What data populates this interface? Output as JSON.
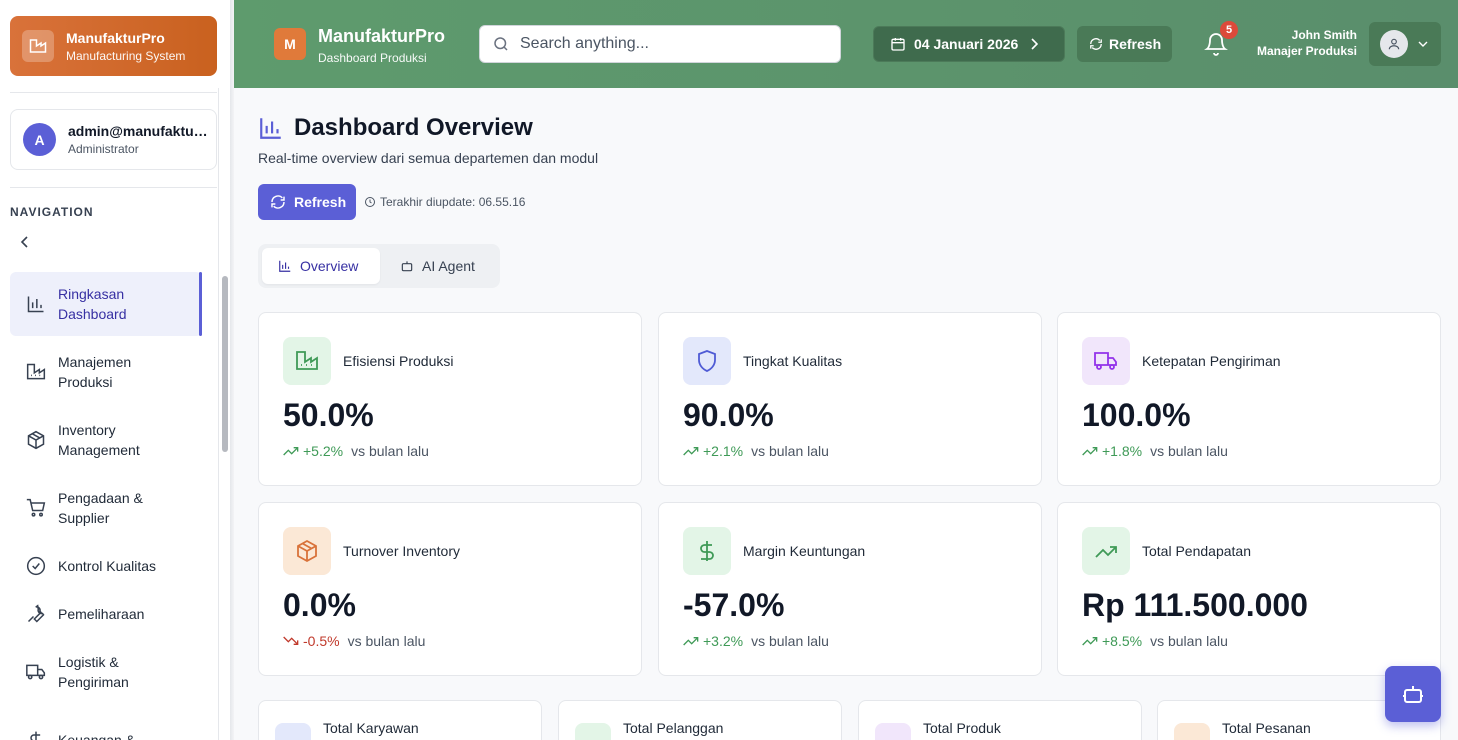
{
  "sidebar": {
    "brand_title": "ManufakturPro",
    "brand_subtitle": "Manufacturing System",
    "user_email": "admin@manufaktur.com",
    "user_role": "Administrator",
    "user_initial": "A",
    "nav_label": "NAVIGATION",
    "items": [
      {
        "label": "Ringkasan Dashboard",
        "icon": "bar-chart-icon",
        "active": true
      },
      {
        "label": "Manajemen Produksi",
        "icon": "factory-icon"
      },
      {
        "label": "Inventory Management",
        "icon": "package-icon"
      },
      {
        "label": "Pengadaan & Supplier",
        "icon": "cart-icon"
      },
      {
        "label": "Kontrol Kualitas",
        "icon": "check-circle-icon"
      },
      {
        "label": "Pemeliharaan",
        "icon": "wrench-icon"
      },
      {
        "label": "Logistik & Pengiriman",
        "icon": "truck-icon"
      },
      {
        "label": "Keuangan &",
        "icon": "dollar-icon"
      }
    ]
  },
  "header": {
    "logo_letter": "M",
    "title": "ManufakturPro",
    "subtitle": "Dashboard Produksi",
    "search_placeholder": "Search anything...",
    "date": "04 Januari 2026",
    "refresh_label": "Refresh",
    "notification_count": "5",
    "user_name": "John Smith",
    "user_role": "Manajer Produksi"
  },
  "main": {
    "title": "Dashboard Overview",
    "subtitle": "Real-time overview dari semua departemen dan modul",
    "refresh_label": "Refresh",
    "last_updated": "Terakhir diupdate: 06.55.16",
    "tabs": [
      {
        "label": "Overview",
        "active": true
      },
      {
        "label": "AI Agent"
      }
    ],
    "cards": [
      {
        "title": "Efisiensi Produksi",
        "value": "50.0%",
        "change": "+5.2%",
        "trend": "up",
        "vs": "vs bulan lalu",
        "icon": "factory-icon",
        "bg": "#e3f5e7",
        "fg": "#3f9a57"
      },
      {
        "title": "Tingkat Kualitas",
        "value": "90.0%",
        "change": "+2.1%",
        "trend": "up",
        "vs": "vs bulan lalu",
        "icon": "shield-icon",
        "bg": "#e3e8fb",
        "fg": "#4f5bd5"
      },
      {
        "title": "Ketepatan Pengiriman",
        "value": "100.0%",
        "change": "+1.8%",
        "trend": "up",
        "vs": "vs bulan lalu",
        "icon": "truck-icon",
        "bg": "#f1e6fb",
        "fg": "#9333ea"
      },
      {
        "title": "Turnover Inventory",
        "value": "0.0%",
        "change": "-0.5%",
        "trend": "down",
        "vs": "vs bulan lalu",
        "icon": "package-icon",
        "bg": "#fbe8d6",
        "fg": "#d9723a"
      },
      {
        "title": "Margin Keuntungan",
        "value": "-57.0%",
        "change": "+3.2%",
        "trend": "up",
        "vs": "vs bulan lalu",
        "icon": "dollar-icon",
        "bg": "#e3f5e7",
        "fg": "#3f9a57"
      },
      {
        "title": "Total Pendapatan",
        "value": "Rp 111.500.000",
        "change": "+8.5%",
        "trend": "up",
        "vs": "vs bulan lalu",
        "icon": "trending-up-icon",
        "bg": "#e3f5e7",
        "fg": "#3f9a57"
      }
    ],
    "mini_cards": [
      {
        "title": "Total Karyawan",
        "bg": "#e3e8fb"
      },
      {
        "title": "Total Pelanggan",
        "bg": "#e3f5e7"
      },
      {
        "title": "Total Produk",
        "bg": "#f1e6fb"
      },
      {
        "title": "Total Pesanan",
        "bg": "#fbe8d6"
      }
    ]
  },
  "colors": {
    "accent": "#5b5fd6",
    "header_green": "#5e9b6d",
    "brand_orange": "#d9723a"
  }
}
